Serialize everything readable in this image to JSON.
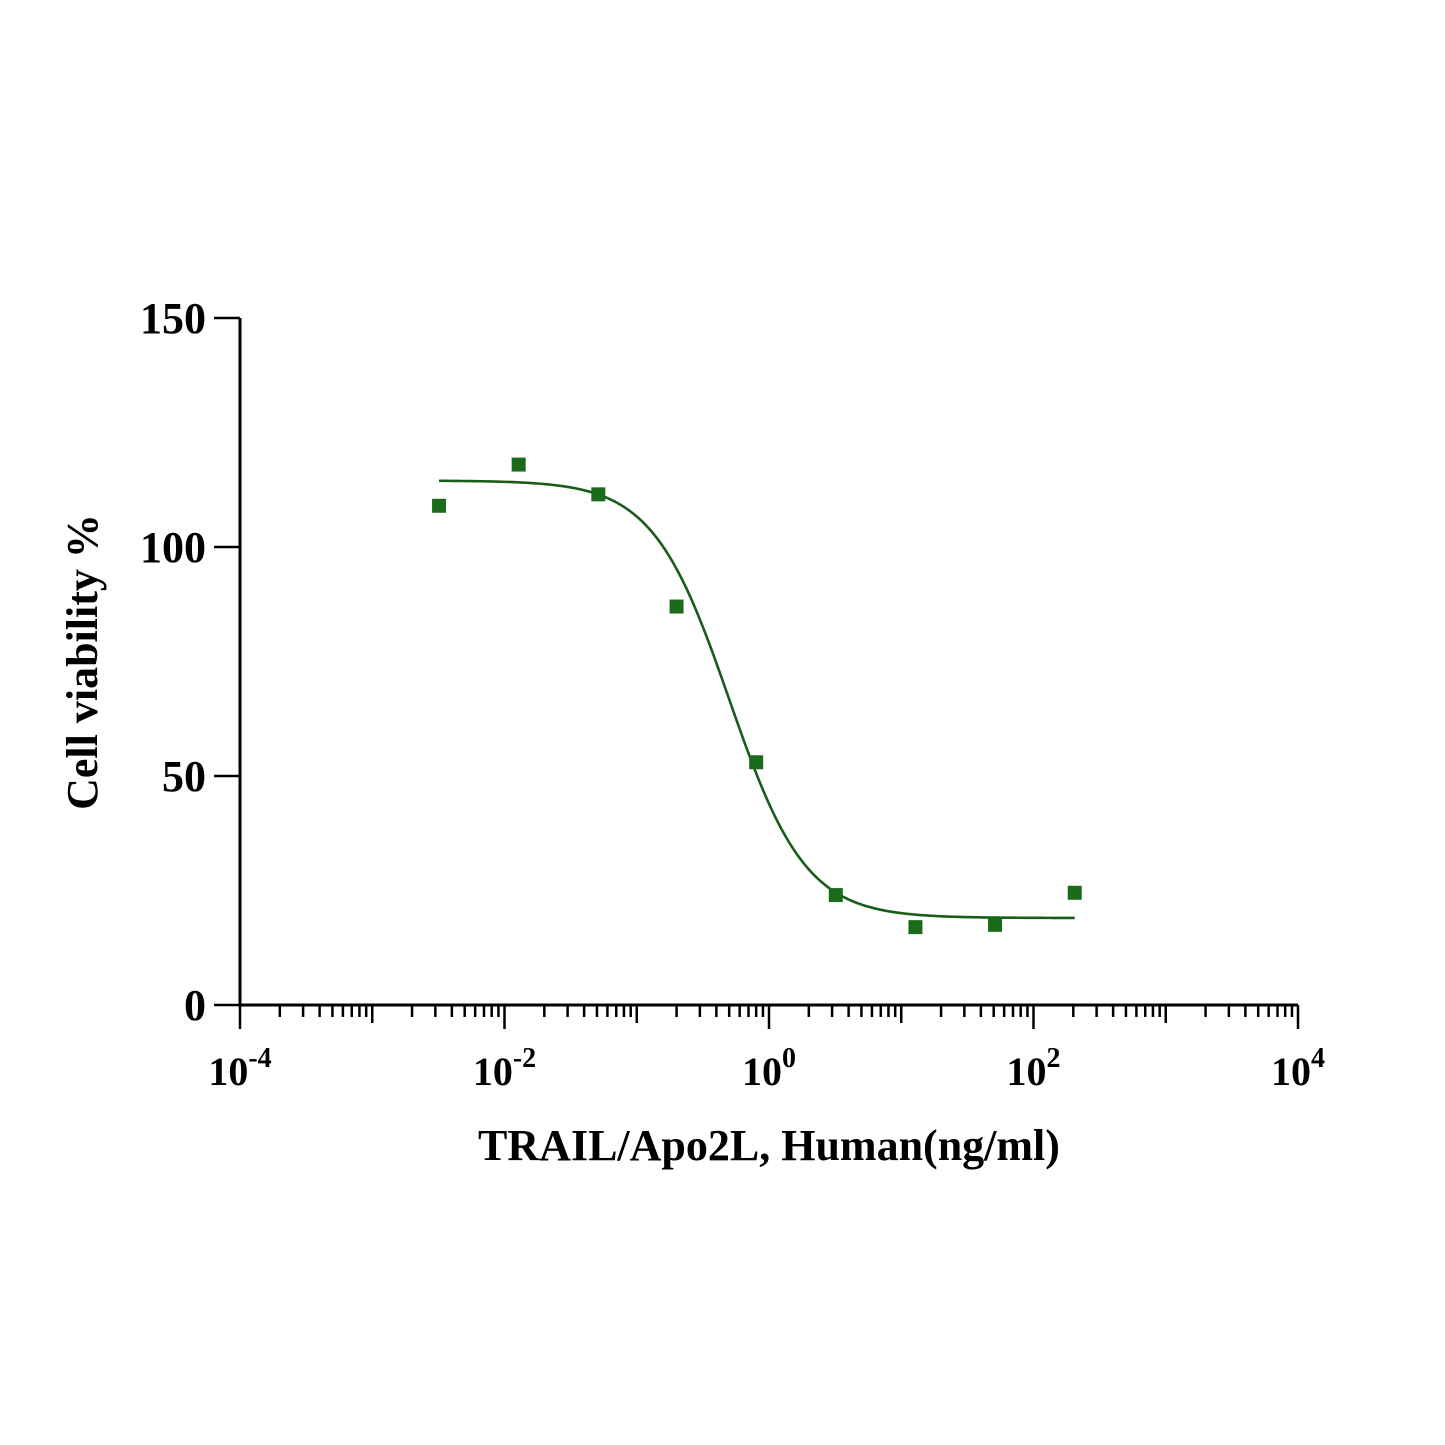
{
  "chart_data": {
    "type": "scatter",
    "xlabel": "TRAIL/Apo2L, Human(ng/ml)",
    "ylabel": "Cell viability %",
    "x_scale": "log10",
    "xlim": [
      0.0001,
      10000
    ],
    "ylim": [
      0,
      150
    ],
    "x_ticks": [
      {
        "base": "10",
        "exp": "-4"
      },
      {
        "base": "10",
        "exp": "-2"
      },
      {
        "base": "10",
        "exp": "0"
      },
      {
        "base": "10",
        "exp": "2"
      },
      {
        "base": "10",
        "exp": "4"
      }
    ],
    "x_tick_values": [
      0.0001,
      0.01,
      1,
      100,
      10000
    ],
    "y_ticks": [
      "0",
      "50",
      "100",
      "150"
    ],
    "y_tick_values": [
      0,
      50,
      100,
      150
    ],
    "grid": false,
    "series": [
      {
        "marker": "square",
        "color": "#1a6b1a",
        "x": [
          0.0032,
          0.0128,
          0.0512,
          0.2,
          0.8,
          3.2,
          12.8,
          51.2,
          205
        ],
        "y": [
          109,
          118,
          111.5,
          87,
          53,
          24,
          17,
          17.5,
          24.5
        ]
      }
    ],
    "fit_curve": {
      "model": "4PL",
      "color": "#1a5c1a",
      "top": 114.5,
      "bottom": 19,
      "ec50": 0.5,
      "hill": 1.5,
      "x_range": [
        0.0032,
        205
      ]
    }
  }
}
